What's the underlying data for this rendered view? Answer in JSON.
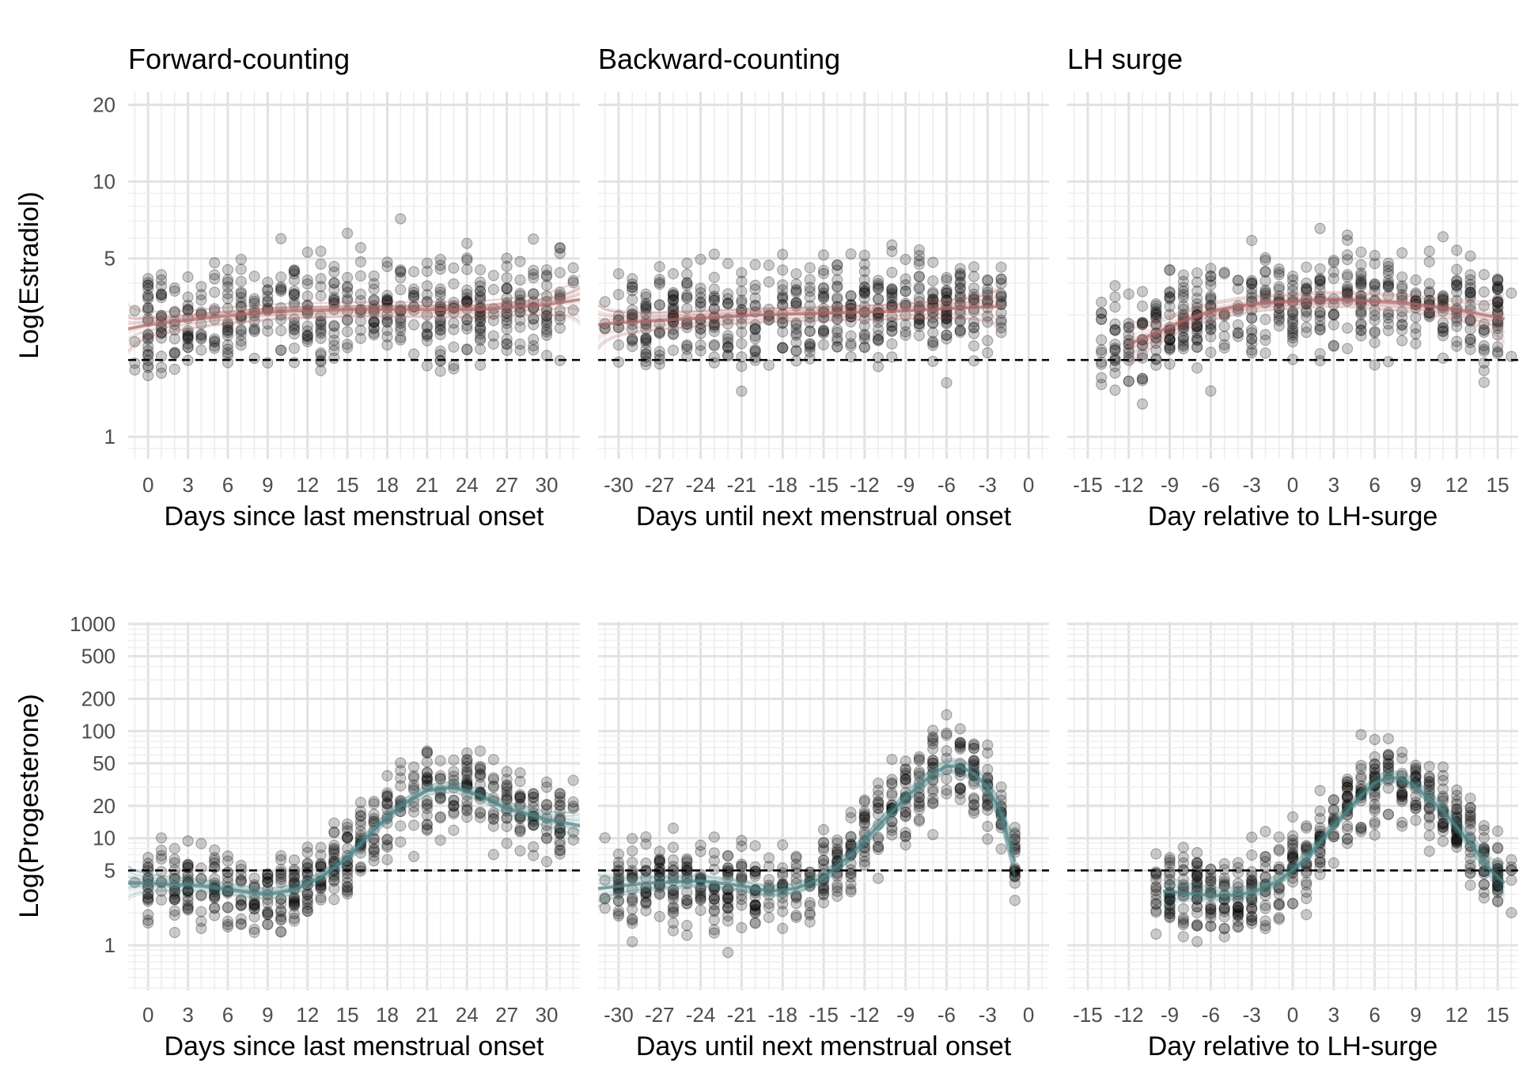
{
  "chart_data": {
    "type": "scatter",
    "description_of_layout": "2x3 facet grid, rows = hormone, columns = cycle-phase counting method",
    "columns": [
      {
        "title": "Forward-counting",
        "xlabel": "Days since last menstrual onset",
        "xlim": [
          -1.5,
          32.5
        ],
        "xticks": [
          0,
          3,
          6,
          9,
          12,
          15,
          18,
          21,
          24,
          27,
          30
        ],
        "xtick_labels": [
          "0",
          "3",
          "6",
          "9",
          "12",
          "15",
          "18",
          "21",
          "24",
          "27",
          "30"
        ]
      },
      {
        "title": "Backward-counting",
        "xlabel": "Days until next menstrual onset",
        "xlim": [
          -31.5,
          1.5
        ],
        "xticks": [
          -30,
          -27,
          -24,
          -21,
          -18,
          -15,
          -12,
          -9,
          -6,
          -3,
          0
        ],
        "xtick_labels": [
          "-30",
          "-27",
          "-24",
          "-21",
          "-18",
          "-15",
          "-12",
          "-9",
          "-6",
          "-3",
          "0"
        ]
      },
      {
        "title": "LH surge",
        "xlabel": "Day relative to LH-surge",
        "xlim": [
          -16.5,
          16.5
        ],
        "xticks": [
          -15,
          -12,
          -9,
          -6,
          -3,
          0,
          3,
          6,
          9,
          12,
          15
        ],
        "xtick_labels": [
          "-15",
          "-12",
          "-9",
          "-6",
          "-3",
          "0",
          "3",
          "6",
          "9",
          "12",
          "15"
        ]
      }
    ],
    "rows": [
      {
        "ylabel": "Log(Estradiol)",
        "scale": "log",
        "ylim": [
          0.82,
          22.5
        ],
        "yticks": [
          1,
          5,
          10,
          20
        ],
        "ytick_labels": [
          "1",
          "5",
          "10",
          "20"
        ],
        "reference_line": 2.0,
        "reference_style": "dashed",
        "trend_color": "#b06666",
        "point_color": "#000000",
        "trend": [
          [
            [
              -1.5,
              2.65
            ],
            [
              0,
              2.75
            ],
            [
              5,
              2.95
            ],
            [
              10,
              3.1
            ],
            [
              15,
              3.15
            ],
            [
              20,
              3.15
            ],
            [
              25,
              3.15
            ],
            [
              30,
              3.3
            ],
            [
              32.5,
              3.45
            ]
          ],
          [
            [
              -31.5,
              2.75
            ],
            [
              -30,
              2.8
            ],
            [
              -25,
              2.9
            ],
            [
              -20,
              3.0
            ],
            [
              -15,
              3.05
            ],
            [
              -10,
              3.1
            ],
            [
              -5,
              3.2
            ],
            [
              -2,
              3.25
            ]
          ],
          [
            [
              -12,
              2.3
            ],
            [
              -10,
              2.55
            ],
            [
              -8,
              2.85
            ],
            [
              -6,
              3.1
            ],
            [
              -4,
              3.25
            ],
            [
              -2,
              3.35
            ],
            [
              0,
              3.4
            ],
            [
              2,
              3.45
            ],
            [
              4,
              3.45
            ],
            [
              6,
              3.4
            ],
            [
              8,
              3.35
            ],
            [
              10,
              3.25
            ],
            [
              12,
              3.15
            ],
            [
              14,
              3.0
            ],
            [
              15.5,
              2.9
            ]
          ]
        ]
      },
      {
        "ylabel": "Log(Progesterone)",
        "scale": "log",
        "ylim": [
          0.38,
          1050
        ],
        "yticks": [
          1,
          5,
          10,
          20,
          50,
          100,
          200,
          500,
          1000
        ],
        "ytick_labels": [
          "1",
          "5",
          "10",
          "20",
          "50",
          "100",
          "200",
          "500",
          "1000"
        ],
        "reference_line": 5,
        "reference_style": "dashed",
        "trend_color": "#4f8588",
        "point_color": "#000000",
        "trend": [
          [
            [
              -1.5,
              3.8
            ],
            [
              0,
              3.8
            ],
            [
              4,
              3.6
            ],
            [
              7,
              3.2
            ],
            [
              9,
              3.0
            ],
            [
              11,
              3.3
            ],
            [
              13,
              4.3
            ],
            [
              15,
              6.5
            ],
            [
              17,
              12
            ],
            [
              19,
              20
            ],
            [
              21,
              28
            ],
            [
              23,
              30
            ],
            [
              25,
              25
            ],
            [
              27,
              19
            ],
            [
              30,
              15
            ],
            [
              32.5,
              13
            ]
          ],
          [
            [
              -31.5,
              3.4
            ],
            [
              -28,
              3.8
            ],
            [
              -24,
              4.0
            ],
            [
              -21,
              3.6
            ],
            [
              -19,
              3.2
            ],
            [
              -17,
              3.4
            ],
            [
              -15,
              4.3
            ],
            [
              -13,
              7
            ],
            [
              -11,
              13
            ],
            [
              -9,
              24
            ],
            [
              -7,
              40
            ],
            [
              -6,
              47
            ],
            [
              -5,
              47
            ],
            [
              -4,
              40
            ],
            [
              -3,
              30
            ],
            [
              -2,
              17
            ],
            [
              -1.5,
              10
            ],
            [
              -1,
              6
            ]
          ],
          [
            [
              -9.5,
              3.2
            ],
            [
              -7,
              3.0
            ],
            [
              -5,
              2.9
            ],
            [
              -3,
              3.1
            ],
            [
              -1,
              4.0
            ],
            [
              1,
              6.5
            ],
            [
              3,
              13
            ],
            [
              5,
              25
            ],
            [
              6,
              33
            ],
            [
              7,
              37
            ],
            [
              8,
              36
            ],
            [
              9,
              30
            ],
            [
              11,
              18
            ],
            [
              13,
              9
            ],
            [
              14.5,
              5
            ],
            [
              15.5,
              3.8
            ]
          ]
        ]
      }
    ]
  }
}
